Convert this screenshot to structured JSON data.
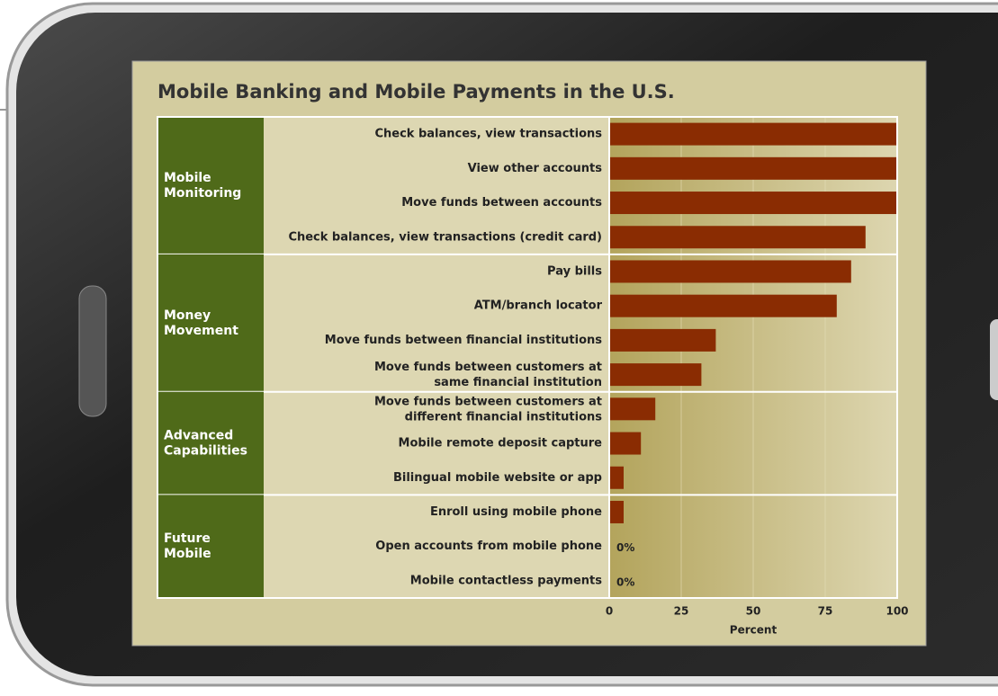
{
  "chart_data": {
    "type": "bar",
    "title": "Mobile Banking and Mobile Payments in the U.S.",
    "xlabel": "Percent",
    "xlim": [
      0,
      100
    ],
    "xticks": [
      0,
      25,
      50,
      75,
      100
    ],
    "color": "#8a2c02",
    "groups": [
      {
        "label": "Mobile\nMonitoring",
        "categories": [
          "Check balances, view transactions",
          "View other accounts",
          "Move funds between accounts",
          "Check balances, view transactions (credit card)"
        ],
        "values": [
          100,
          100,
          100,
          89
        ],
        "value_labels": [
          null,
          null,
          null,
          null
        ]
      },
      {
        "label": "Money\nMovement",
        "categories": [
          "Pay bills",
          "ATM/branch locator",
          "Move funds between financial institutions",
          "Move funds between customers at\nsame financial institution"
        ],
        "values": [
          84,
          79,
          37,
          32
        ],
        "value_labels": [
          null,
          null,
          null,
          null
        ]
      },
      {
        "label": "Advanced\nCapabilities",
        "categories": [
          "Move funds between customers at\ndifferent financial institutions",
          "Mobile remote deposit capture",
          "Bilingual mobile website or app"
        ],
        "values": [
          16,
          11,
          5
        ],
        "value_labels": [
          null,
          null,
          null
        ]
      },
      {
        "label": "Future\nMobile",
        "categories": [
          "Enroll using mobile phone",
          "Open accounts from mobile phone",
          "Mobile contactless payments"
        ],
        "values": [
          5,
          0,
          0
        ],
        "value_labels": [
          null,
          "0%",
          "0%"
        ]
      }
    ]
  }
}
